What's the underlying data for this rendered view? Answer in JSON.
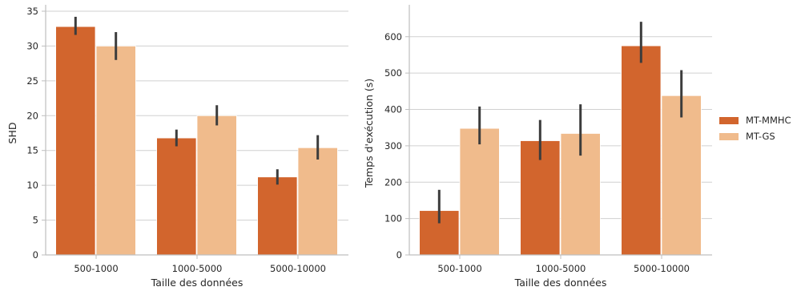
{
  "chart_data": [
    {
      "type": "bar",
      "categories": [
        "500-1000",
        "1000-5000",
        "5000-10000"
      ],
      "series": [
        {
          "name": "MT-MMHC",
          "values": [
            32.8,
            16.8,
            11.2
          ],
          "ci": [
            [
              31.6,
              34.2
            ],
            [
              15.6,
              18.0
            ],
            [
              10.1,
              12.3
            ]
          ]
        },
        {
          "name": "MT-GS",
          "values": [
            30.0,
            20.0,
            15.4
          ],
          "ci": [
            [
              28.0,
              32.0
            ],
            [
              18.6,
              21.5
            ],
            [
              13.7,
              17.2
            ]
          ]
        }
      ],
      "xlabel": "Taille des données",
      "ylabel": "SHD",
      "ylim": [
        0,
        35
      ],
      "yticks": [
        0,
        5,
        10,
        15,
        20,
        25,
        30,
        35
      ],
      "grid": true
    },
    {
      "type": "bar",
      "categories": [
        "500-1000",
        "1000-5000",
        "5000-10000"
      ],
      "series": [
        {
          "name": "MT-MMHC",
          "values": [
            122,
            314,
            575
          ],
          "ci": [
            [
              87,
              179
            ],
            [
              261,
              371
            ],
            [
              528,
              641
            ]
          ]
        },
        {
          "name": "MT-GS",
          "values": [
            348,
            334,
            438
          ],
          "ci": [
            [
              304,
              408
            ],
            [
              273,
              414
            ],
            [
              378,
              508
            ]
          ]
        }
      ],
      "xlabel": "Taille des données",
      "ylabel": "Temps d'exécution (s)",
      "ylim": [
        0,
        670
      ],
      "yticks": [
        0,
        100,
        200,
        300,
        400,
        500,
        600
      ],
      "grid": true
    }
  ],
  "legend": {
    "placement": "right",
    "items": [
      {
        "label": "MT-MMHC",
        "color": "#d2652d"
      },
      {
        "label": "MT-GS",
        "color": "#f0bb8c"
      }
    ]
  },
  "colors": {
    "series": [
      "#d2652d",
      "#f0bb8c"
    ],
    "errorbar": "#3c3c3c",
    "grid": "#d0d0d0",
    "axis": "#bfbfbf"
  }
}
